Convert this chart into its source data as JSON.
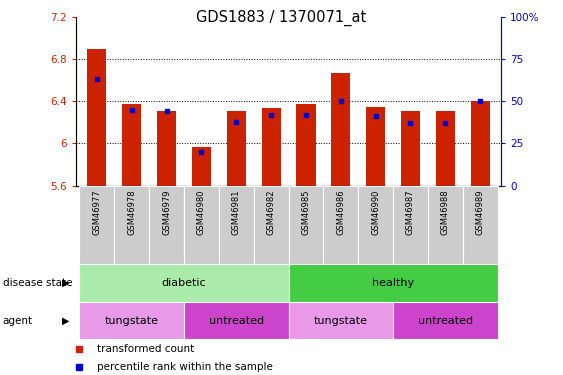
{
  "title": "GDS1883 / 1370071_at",
  "samples": [
    "GSM46977",
    "GSM46978",
    "GSM46979",
    "GSM46980",
    "GSM46981",
    "GSM46982",
    "GSM46985",
    "GSM46986",
    "GSM46990",
    "GSM46987",
    "GSM46988",
    "GSM46989"
  ],
  "transformed_count": [
    6.9,
    6.37,
    6.31,
    5.97,
    6.31,
    6.34,
    6.37,
    6.67,
    6.35,
    6.31,
    6.31,
    6.4
  ],
  "percentile_rank": [
    63,
    45,
    44,
    20,
    38,
    42,
    42,
    50,
    41,
    37,
    37,
    50
  ],
  "ylim_left": [
    5.6,
    7.2
  ],
  "ylim_right": [
    0,
    100
  ],
  "yticks_left": [
    5.6,
    6.0,
    6.4,
    6.8,
    7.2
  ],
  "yticks_left_labels": [
    "5.6",
    "6",
    "6.4",
    "6.8",
    "7.2"
  ],
  "yticks_right": [
    0,
    25,
    50,
    75,
    100
  ],
  "yticks_right_labels": [
    "0",
    "25",
    "50",
    "75",
    "100%"
  ],
  "bar_color_red": "#cc2200",
  "bar_color_blue": "#0000cc",
  "tick_color_left": "#cc2200",
  "tick_color_right": "#0000cc",
  "disease_state_groups": [
    {
      "label": "diabetic",
      "start": 0,
      "end": 5,
      "color": "#aaeaaa"
    },
    {
      "label": "healthy",
      "start": 6,
      "end": 11,
      "color": "#44cc44"
    }
  ],
  "agent_groups": [
    {
      "label": "tungstate",
      "start": 0,
      "end": 2,
      "color": "#e899e8"
    },
    {
      "label": "untreated",
      "start": 3,
      "end": 5,
      "color": "#cc44cc"
    },
    {
      "label": "tungstate",
      "start": 6,
      "end": 8,
      "color": "#e899e8"
    },
    {
      "label": "untreated",
      "start": 9,
      "end": 11,
      "color": "#cc44cc"
    }
  ],
  "legend_items": [
    {
      "label": "transformed count",
      "color": "#cc2200"
    },
    {
      "label": "percentile rank within the sample",
      "color": "#0000cc"
    }
  ],
  "xlabel_disease": "disease state",
  "xlabel_agent": "agent",
  "baseline": 5.6,
  "sample_box_color": "#cccccc",
  "bar_width": 0.55
}
